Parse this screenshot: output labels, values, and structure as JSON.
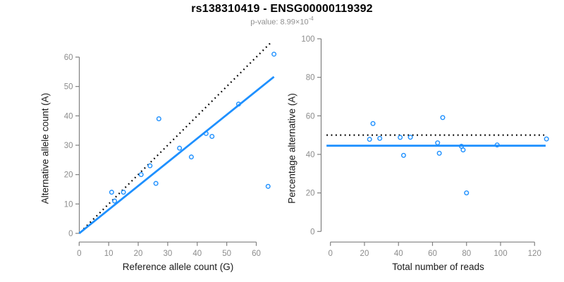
{
  "header": {
    "title": "rs138310419 - ENSG00000119392",
    "pvalue_text": "p-value: 8.99×10",
    "pvalue_exponent": "-4"
  },
  "colors": {
    "point_blue": "#1e90ff",
    "fit_line_blue": "#1e90ff",
    "reference_line_black": "#000000",
    "axis_gray": "#808080",
    "tick_label_gray": "#8c8c8c",
    "axis_label_dark": "#1a1a1a",
    "subtitle_gray": "#909090"
  },
  "chart_data": [
    {
      "type": "scatter",
      "panel": "allele-counts",
      "xlabel": "Reference allele count (G)",
      "ylabel": "Alternative allele count (A)",
      "xlim": [
        0,
        67
      ],
      "ylim": [
        0,
        65
      ],
      "xticks": [
        0,
        10,
        20,
        30,
        40,
        50,
        60
      ],
      "yticks": [
        0,
        10,
        20,
        30,
        40,
        50,
        60
      ],
      "grid": false,
      "points": [
        [
          11,
          14
        ],
        [
          12,
          11
        ],
        [
          15,
          14
        ],
        [
          21,
          20
        ],
        [
          24,
          23
        ],
        [
          26,
          17
        ],
        [
          27,
          39
        ],
        [
          34,
          29
        ],
        [
          38,
          26
        ],
        [
          43,
          34
        ],
        [
          45,
          33
        ],
        [
          54,
          44
        ],
        [
          64,
          16
        ],
        [
          66,
          61
        ]
      ],
      "lines": [
        {
          "name": "identity",
          "style": "dotted",
          "color": "#000000",
          "x1": 1.5,
          "y1": 1.5,
          "x2": 65,
          "y2": 65
        },
        {
          "name": "regression",
          "style": "solid",
          "color": "#1e90ff",
          "x1": 0,
          "y1": 0,
          "x2": 66,
          "y2": 53.3
        }
      ]
    },
    {
      "type": "scatter",
      "panel": "percentage-alternative",
      "xlabel": "Total number of reads",
      "ylabel": "Percentage alternative (A)",
      "xlim": [
        -2.5,
        127.5
      ],
      "ylim": [
        0,
        100
      ],
      "xticks": [
        0,
        20,
        40,
        60,
        80,
        100,
        120
      ],
      "yticks": [
        0,
        20,
        40,
        60,
        80,
        100
      ],
      "grid": false,
      "points": [
        [
          25,
          56
        ],
        [
          23,
          47.8
        ],
        [
          29,
          48.3
        ],
        [
          41,
          48.8
        ],
        [
          47,
          48.9
        ],
        [
          43,
          39.5
        ],
        [
          66,
          59.1
        ],
        [
          63,
          46
        ],
        [
          64,
          40.6
        ],
        [
          77,
          44.2
        ],
        [
          78,
          42.3
        ],
        [
          98,
          44.9
        ],
        [
          80,
          20
        ],
        [
          127,
          48
        ]
      ],
      "lines": [
        {
          "name": "expected-50pct",
          "style": "dotted",
          "color": "#000000",
          "x1": -2.3,
          "y1": 50,
          "x2": 125.7,
          "y2": 50
        },
        {
          "name": "mean-percentage",
          "style": "solid",
          "color": "#1e90ff",
          "x1": -2.3,
          "y1": 44.5,
          "x2": 126.5,
          "y2": 44.5
        }
      ]
    }
  ]
}
